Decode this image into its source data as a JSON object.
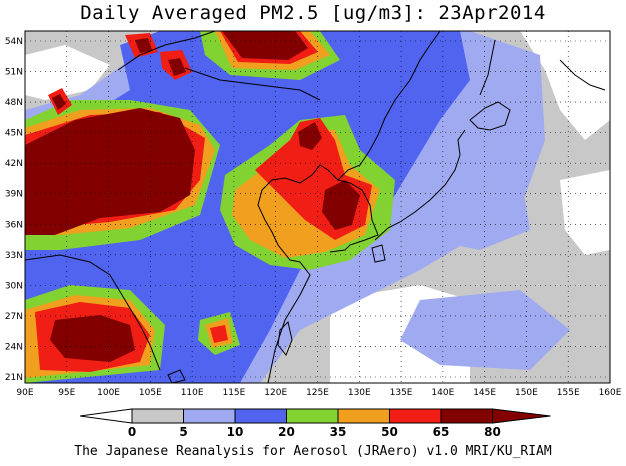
{
  "title": "Daily Averaged PM2.5 [ug/m3]: 23Apr2014",
  "footer": "The Japanese Reanalysis for Aerosol (JRAero) v1.0 MRI/KU_RIAM",
  "lon_labels": [
    "90E",
    "95E",
    "100E",
    "105E",
    "110E",
    "115E",
    "120E",
    "125E",
    "130E",
    "135E",
    "140E",
    "145E",
    "150E",
    "155E",
    "160E"
  ],
  "lat_labels": [
    "54N",
    "51N",
    "48N",
    "45N",
    "42N",
    "39N",
    "36N",
    "33N",
    "30N",
    "27N",
    "24N",
    "21N"
  ],
  "colorbar": {
    "labels": [
      "0",
      "5",
      "10",
      "20",
      "35",
      "50",
      "65",
      "80"
    ],
    "colors": [
      "#ffffff",
      "#c8c8c8",
      "#a0aaf0",
      "#5064f0",
      "#82d232",
      "#f0a01e",
      "#f01e14",
      "#820000"
    ]
  }
}
